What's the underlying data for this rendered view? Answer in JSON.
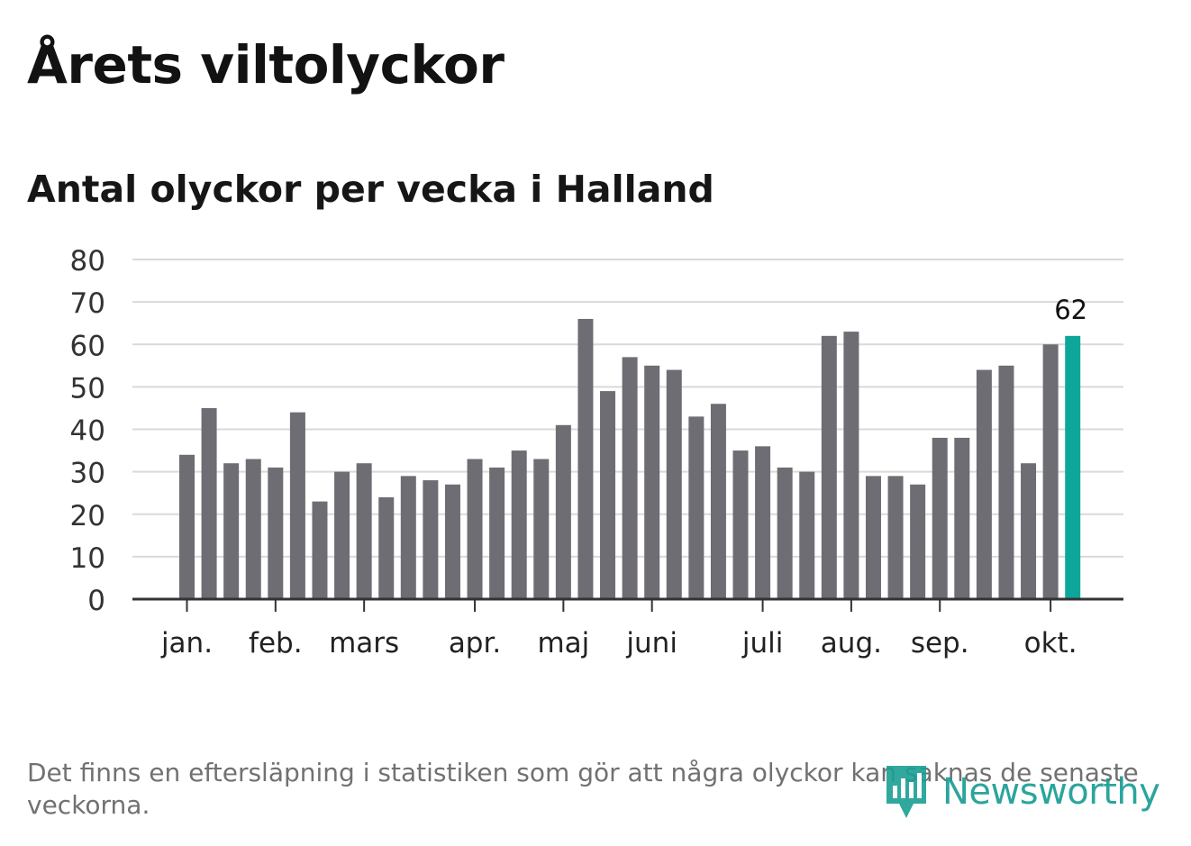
{
  "title": "Årets viltolyckor",
  "subtitle": "Antal olyckor per vecka i Halland",
  "footnote": "Det finns en eftersläpning i statistiken som gör att några olyckor kan saknas de senaste veckorna.",
  "brand": {
    "name": "Newsworthy",
    "color": "#1a9e94"
  },
  "colors": {
    "bar": "#6e6d73",
    "highlight": "#0fa69a",
    "grid": "#d9d9d9",
    "axis": "#333333"
  },
  "chart_data": {
    "type": "bar",
    "ylim": [
      0,
      80
    ],
    "yticks": [
      0,
      10,
      20,
      30,
      40,
      50,
      60,
      70,
      80
    ],
    "grid": true,
    "values": [
      34,
      45,
      32,
      33,
      31,
      44,
      23,
      30,
      32,
      24,
      29,
      28,
      27,
      33,
      31,
      35,
      33,
      41,
      66,
      49,
      57,
      55,
      54,
      43,
      46,
      35,
      36,
      31,
      30,
      62,
      63,
      29,
      29,
      27,
      38,
      38,
      54,
      55,
      32,
      60,
      62
    ],
    "highlight_index": 40,
    "highlight_label": "62",
    "month_labels": [
      {
        "label": "jan.",
        "bar_index": 0
      },
      {
        "label": "feb.",
        "bar_index": 4
      },
      {
        "label": "mars",
        "bar_index": 8
      },
      {
        "label": "apr.",
        "bar_index": 13
      },
      {
        "label": "maj",
        "bar_index": 17
      },
      {
        "label": "juni",
        "bar_index": 21
      },
      {
        "label": "juli",
        "bar_index": 26
      },
      {
        "label": "aug.",
        "bar_index": 30
      },
      {
        "label": "sep.",
        "bar_index": 34
      },
      {
        "label": "okt.",
        "bar_index": 39
      }
    ]
  }
}
